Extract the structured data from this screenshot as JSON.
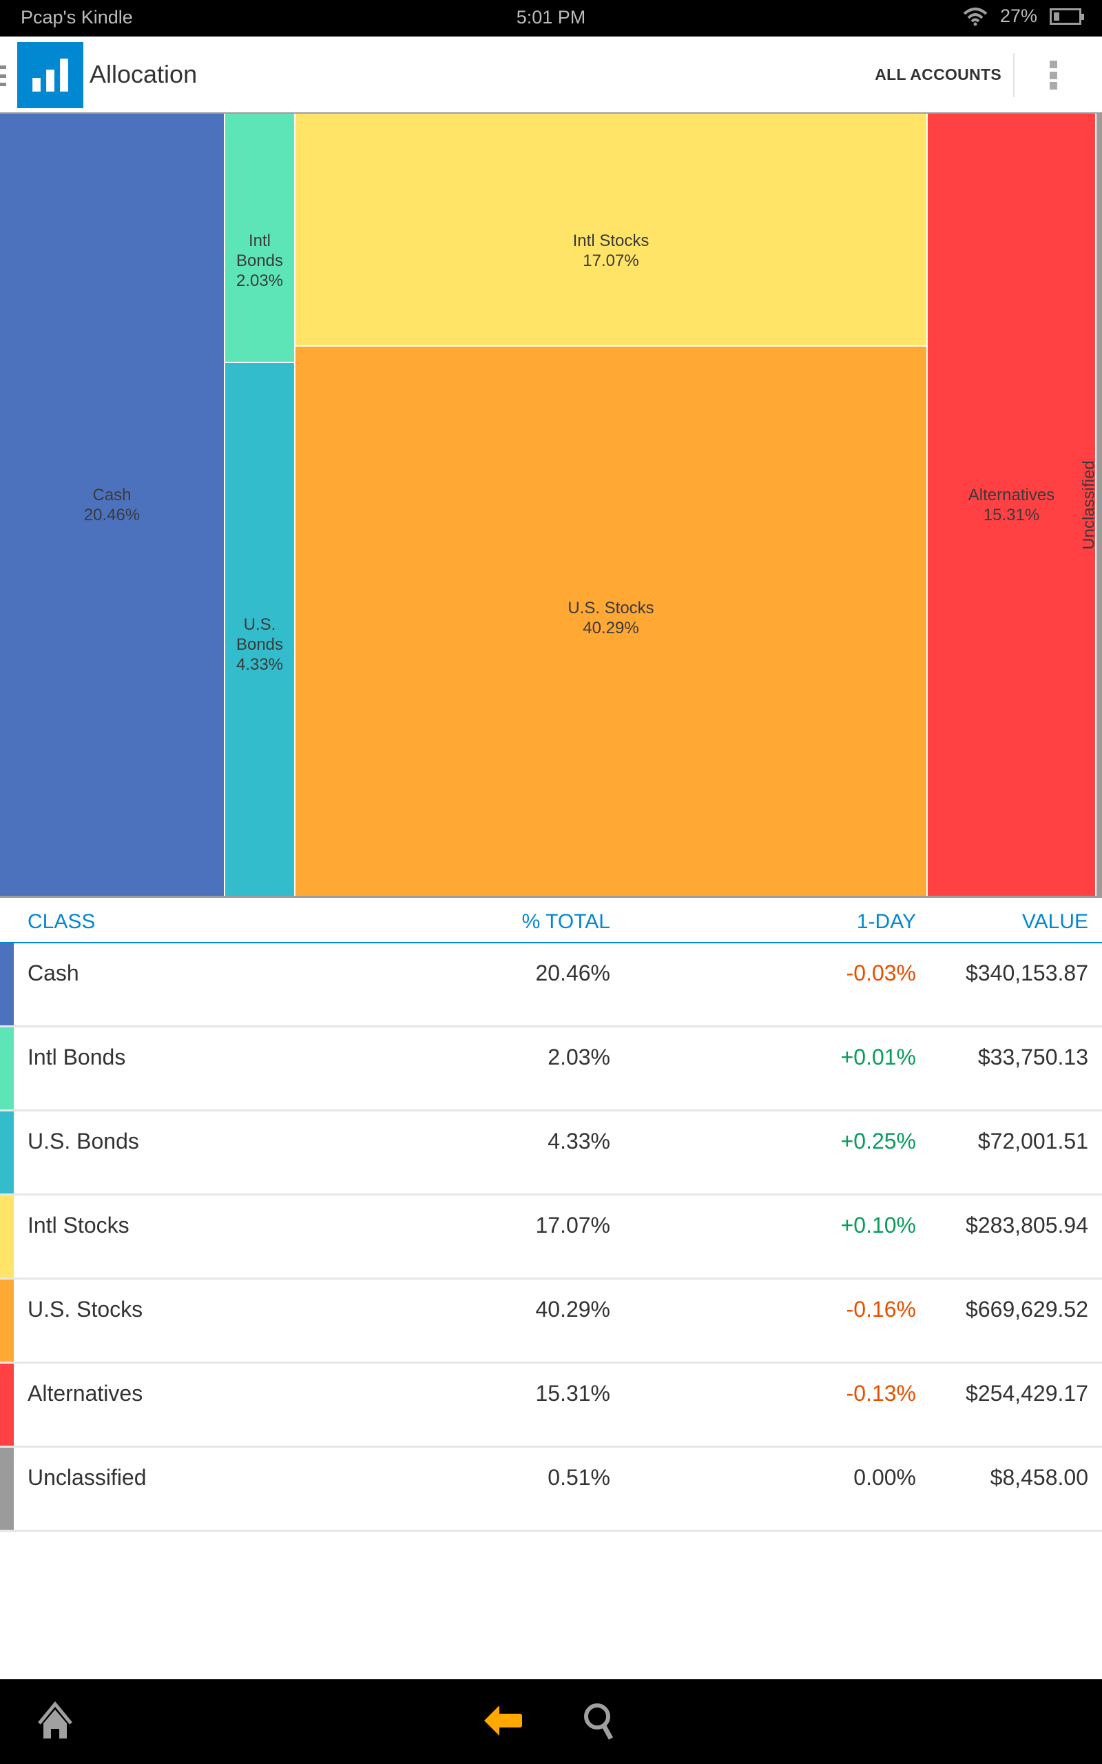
{
  "status_bar": {
    "device_name": "Pcap's Kindle",
    "time": "5:01 PM",
    "battery": "27%",
    "wifi_icon": "wifi-icon",
    "battery_icon": "battery-icon"
  },
  "app_bar": {
    "menu_icon": "drawer-menu-icon",
    "logo_icon": "bar-chart-icon",
    "title": "Allocation",
    "accounts_button": "ALL ACCOUNTS",
    "overflow_icon": "more-vertical-icon"
  },
  "colors": {
    "accent": "#0288d1",
    "negative": "#e65100",
    "positive": "#0b9b5d",
    "neutral": "#333333"
  },
  "chart_data": {
    "type": "treemap",
    "title": "",
    "items": [
      {
        "name": "Cash",
        "percent": 20.46,
        "label": "20.46%",
        "color": "#4c72bd"
      },
      {
        "name": "Intl Bonds",
        "percent": 2.03,
        "label": "2.03%",
        "color": "#5de5b8"
      },
      {
        "name": "U.S. Bonds",
        "percent": 4.33,
        "label": "4.33%",
        "color": "#33bccb"
      },
      {
        "name": "Intl Stocks",
        "percent": 17.07,
        "label": "17.07%",
        "color": "#ffe468"
      },
      {
        "name": "U.S. Stocks",
        "percent": 40.29,
        "label": "40.29%",
        "color": "#ffa834"
      },
      {
        "name": "Alternatives",
        "percent": 15.31,
        "label": "15.31%",
        "color": "#ff4144"
      },
      {
        "name": "Unclassified",
        "percent": 0.51,
        "label": "0.51%",
        "color": "#9b9b9b"
      }
    ]
  },
  "table": {
    "headers": {
      "class": "CLASS",
      "pct_total": "% TOTAL",
      "one_day": "1-DAY",
      "value": "VALUE"
    },
    "rows": [
      {
        "class": "Cash",
        "pct_total": "20.46%",
        "one_day": "-0.03%",
        "direction": "negative",
        "value": "$340,153.87",
        "color": "#4c72bd"
      },
      {
        "class": "Intl Bonds",
        "pct_total": "2.03%",
        "one_day": "+0.01%",
        "direction": "positive",
        "value": "$33,750.13",
        "color": "#5de5b8"
      },
      {
        "class": "U.S. Bonds",
        "pct_total": "4.33%",
        "one_day": "+0.25%",
        "direction": "positive",
        "value": "$72,001.51",
        "color": "#33bccb"
      },
      {
        "class": "Intl Stocks",
        "pct_total": "17.07%",
        "one_day": "+0.10%",
        "direction": "positive",
        "value": "$283,805.94",
        "color": "#ffe468"
      },
      {
        "class": "U.S. Stocks",
        "pct_total": "40.29%",
        "one_day": "-0.16%",
        "direction": "negative",
        "value": "$669,629.52",
        "color": "#ffa834"
      },
      {
        "class": "Alternatives",
        "pct_total": "15.31%",
        "one_day": "-0.13%",
        "direction": "negative",
        "value": "$254,429.17",
        "color": "#ff4144"
      },
      {
        "class": "Unclassified",
        "pct_total": "0.51%",
        "one_day": "0.00%",
        "direction": "neutral",
        "value": "$8,458.00",
        "color": "#9b9b9b"
      }
    ]
  },
  "nav_bar": {
    "home_icon": "home-icon",
    "back_icon": "back-arrow-icon",
    "search_icon": "search-icon",
    "back_color": "#ffa800"
  }
}
